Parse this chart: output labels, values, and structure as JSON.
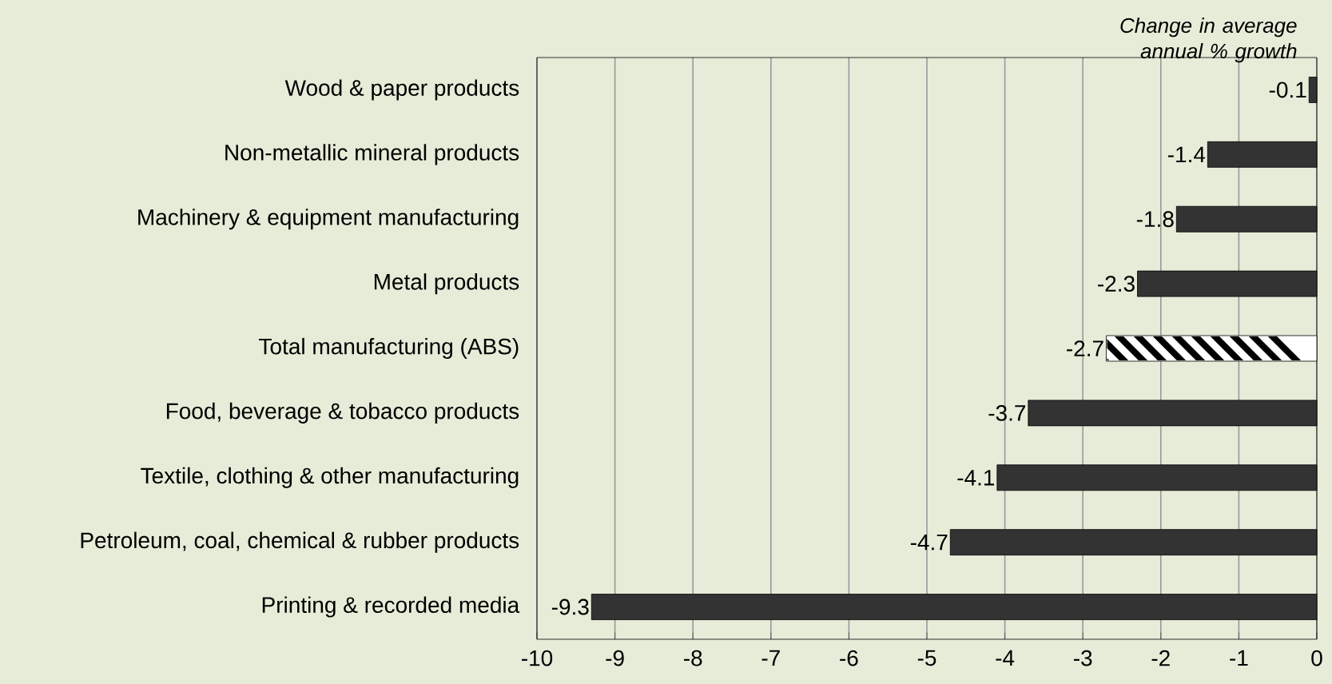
{
  "chart_data": {
    "type": "bar",
    "orientation": "horizontal",
    "xlabel": "Change in average annual % growth",
    "categories": [
      "Wood & paper products",
      "Non-metallic mineral products",
      "Machinery & equipment manufacturing",
      "Metal products",
      "Total manufacturing (ABS)",
      "Food, beverage & tobacco products",
      "Textile, clothing & other manufacturing",
      "Petroleum, coal, chemical & rubber products",
      "Printing & recorded media"
    ],
    "values": [
      -0.1,
      -1.4,
      -1.8,
      -2.3,
      -2.7,
      -3.7,
      -4.1,
      -4.7,
      -9.3
    ],
    "colors": [
      "#333333",
      "#333333",
      "#333333",
      "#333333",
      "#ffffff",
      "#333333",
      "#333333",
      "#333333",
      "#333333"
    ],
    "xlim": [
      -10,
      0
    ],
    "xticks": [
      -10,
      -9,
      -8,
      -7,
      -6,
      -5,
      -4,
      -3,
      -2,
      -1,
      0
    ],
    "grid": "x",
    "data_labels": true
  }
}
